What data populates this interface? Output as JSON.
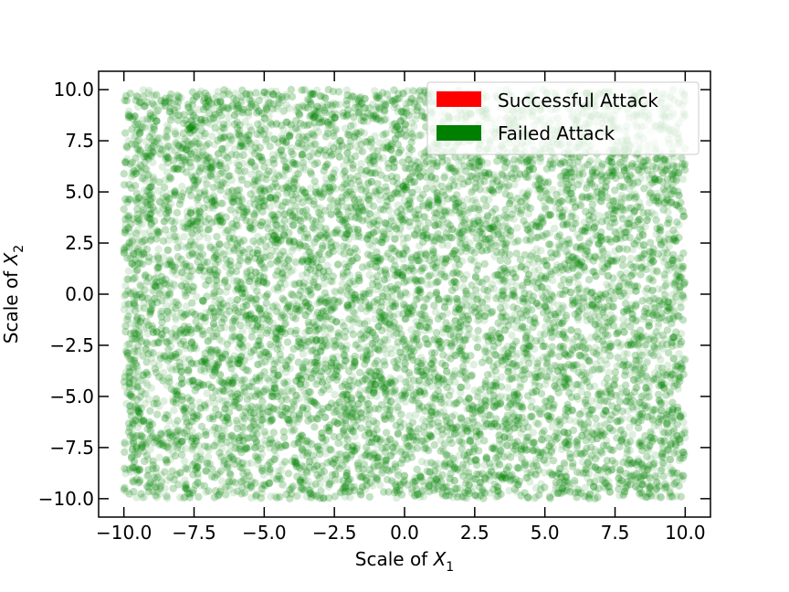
{
  "chart_data": {
    "type": "scatter",
    "title": "",
    "xlabel": {
      "prefix": "Scale of ",
      "var": "X",
      "sub": "1"
    },
    "ylabel": {
      "prefix": "Scale of ",
      "var": "X",
      "sub": "2"
    },
    "xlim": [
      -10.9,
      10.9
    ],
    "ylim": [
      -10.9,
      10.9
    ],
    "xticks": [
      -10.0,
      -7.5,
      -5.0,
      -2.5,
      0.0,
      2.5,
      5.0,
      7.5,
      10.0
    ],
    "yticks": [
      -10.0,
      -7.5,
      -5.0,
      -2.5,
      0.0,
      2.5,
      5.0,
      7.5,
      10.0
    ],
    "xtick_labels": [
      "−10.0",
      "−7.5",
      "−5.0",
      "−2.5",
      "0.0",
      "2.5",
      "5.0",
      "7.5",
      "10.0"
    ],
    "ytick_labels": [
      "−10.0",
      "−7.5",
      "−5.0",
      "−2.5",
      "0.0",
      "2.5",
      "5.0",
      "7.5",
      "10.0"
    ],
    "grid": false,
    "legend_position": "top-right",
    "series": [
      {
        "name": "Successful Attack",
        "color": "#ff0000",
        "x_range": null,
        "y_range": null
      },
      {
        "name": "Failed Attack",
        "color": "#008000",
        "x_range": [
          -10,
          10
        ],
        "y_range": [
          -10,
          10
        ]
      }
    ]
  }
}
